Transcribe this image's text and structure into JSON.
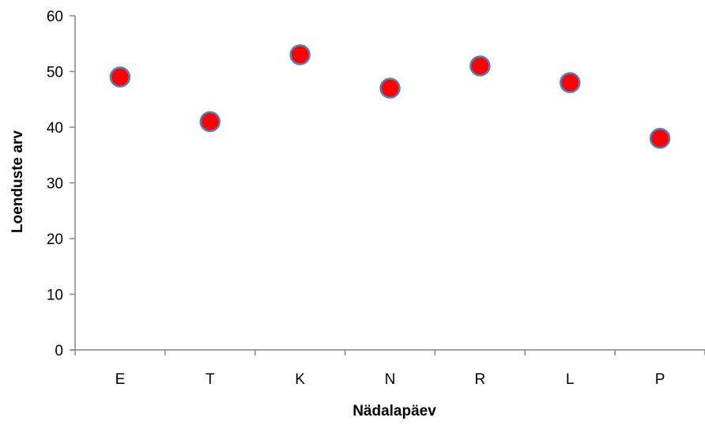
{
  "chart_data": {
    "type": "scatter",
    "title": "",
    "xlabel": "Nädalapäev",
    "ylabel": "Loenduste arv",
    "categories": [
      "E",
      "T",
      "K",
      "N",
      "R",
      "L",
      "P"
    ],
    "series": [
      {
        "values": [
          49,
          41,
          53,
          47,
          51,
          48,
          38
        ]
      }
    ],
    "ylim": [
      0,
      60
    ],
    "yticks": [
      "0",
      "10",
      "20",
      "30",
      "40",
      "50",
      "60"
    ],
    "grid": false,
    "legend": "none",
    "marker_fill": "#ff0000",
    "marker_edge": "#4f81bd",
    "axis_color": "#868686"
  }
}
